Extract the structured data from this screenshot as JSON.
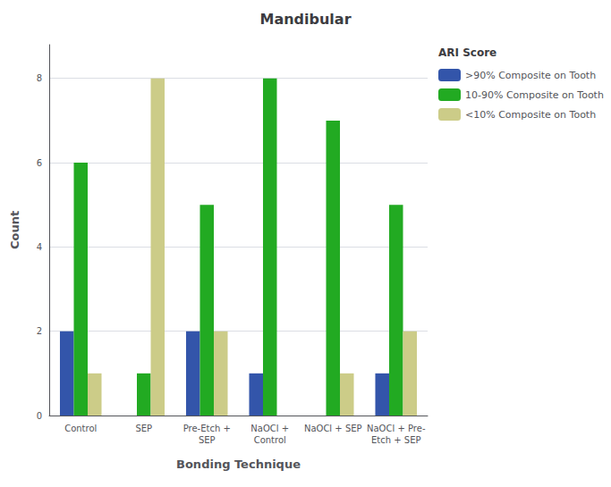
{
  "chart_data": {
    "type": "bar",
    "title": "Mandibular",
    "xlabel": "Bonding Technique",
    "ylabel": "Count",
    "legend_title": "ARI Score",
    "categories": [
      "Control",
      "SEP",
      "Pre-Etch +\nSEP",
      "NaOCl +\nControl",
      "NaOCl + SEP",
      "NaOCl + Pre-\nEtch + SEP"
    ],
    "series": [
      {
        "name": ">90% Composite on Tooth",
        "color": "#3355AA",
        "values": [
          2,
          0,
          2,
          1,
          0,
          1
        ]
      },
      {
        "name": "10-90% Composite on Tooth",
        "color": "#22AA22",
        "values": [
          6,
          1,
          5,
          8,
          7,
          5
        ]
      },
      {
        "name": "<10% Composite on Tooth",
        "color": "#CCCC88",
        "values": [
          1,
          8,
          2,
          0,
          1,
          2
        ]
      }
    ],
    "ylim": [
      0,
      8.8
    ],
    "yticks": [
      0,
      2,
      4,
      6,
      8
    ],
    "grid": true,
    "legend": "right"
  }
}
